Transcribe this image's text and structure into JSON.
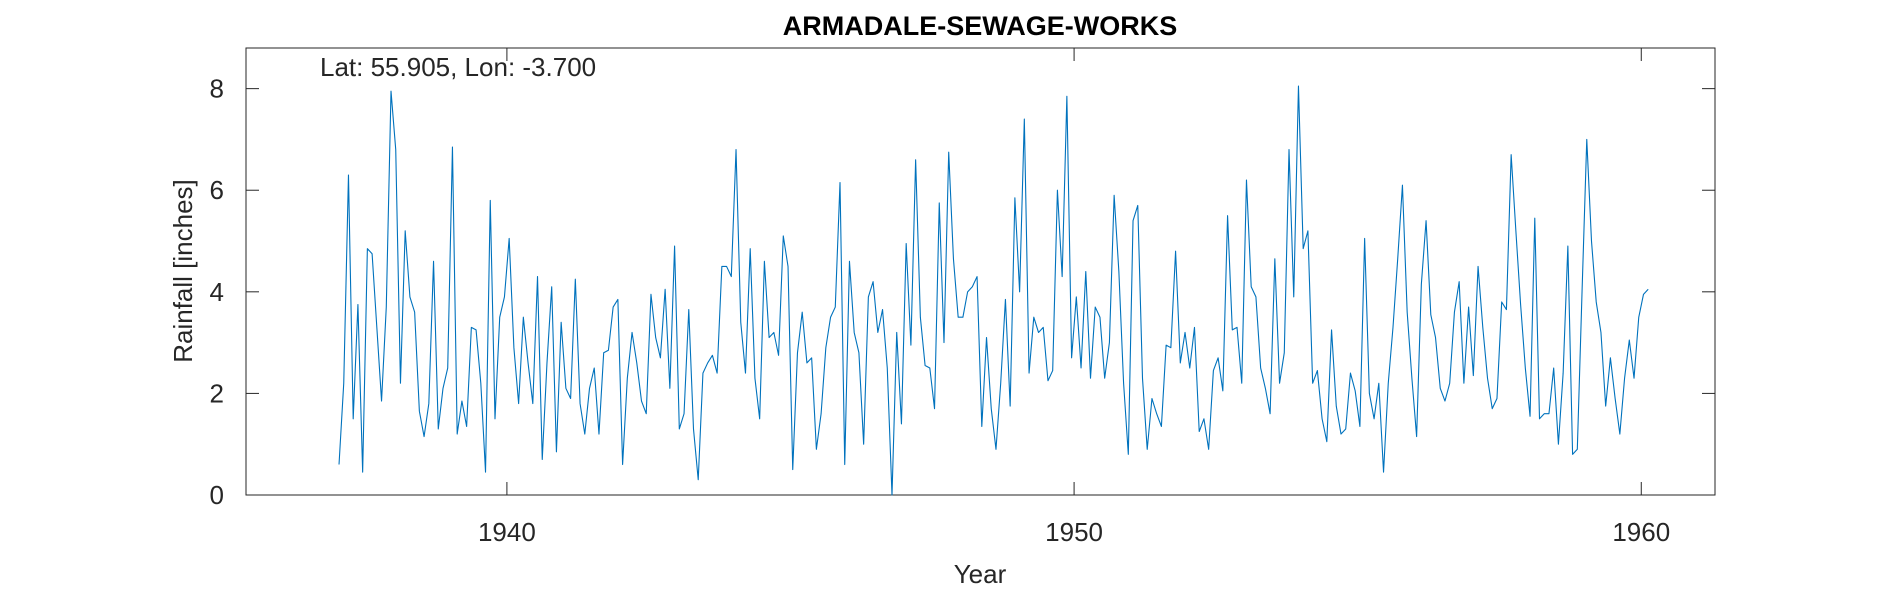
{
  "chart_data": {
    "type": "line",
    "title": "ARMADALE-SEWAGE-WORKS",
    "annotation": "Lat: 55.905, Lon: -3.700",
    "xlabel": "Year",
    "ylabel": "Rainfall [inches]",
    "xlim": [
      1935.4,
      1961.3
    ],
    "ylim": [
      0,
      8.8
    ],
    "xticks": [
      1940,
      1950,
      1960
    ],
    "yticks": [
      0,
      2,
      4,
      6,
      8
    ],
    "grid": false,
    "box": true,
    "line_color": "#0072BD",
    "series": [
      {
        "x_start": 1937.04,
        "x_step": 0.08333,
        "values": [
          0.6,
          2.2,
          6.3,
          1.5,
          3.75,
          0.45,
          4.85,
          4.75,
          3.3,
          1.85,
          3.7,
          7.95,
          6.8,
          2.2,
          5.2,
          3.9,
          3.6,
          1.65,
          1.15,
          1.8,
          4.6,
          1.3,
          2.1,
          2.5,
          6.85,
          1.2,
          1.85,
          1.35,
          3.3,
          3.25,
          2.2,
          0.45,
          5.8,
          1.5,
          3.5,
          3.9,
          5.05,
          2.9,
          1.8,
          3.5,
          2.6,
          1.8,
          4.3,
          0.7,
          2.6,
          4.1,
          0.85,
          3.4,
          2.1,
          1.9,
          4.25,
          1.8,
          1.2,
          2.1,
          2.5,
          1.2,
          2.8,
          2.85,
          3.7,
          3.85,
          0.6,
          2.3,
          3.2,
          2.6,
          1.85,
          1.6,
          3.95,
          3.1,
          2.7,
          4.05,
          2.1,
          4.9,
          1.3,
          1.6,
          3.65,
          1.3,
          0.3,
          2.4,
          2.6,
          2.75,
          2.4,
          4.5,
          4.5,
          4.3,
          6.8,
          3.4,
          2.4,
          4.85,
          2.3,
          1.5,
          4.6,
          3.1,
          3.2,
          2.75,
          5.1,
          4.5,
          0.5,
          2.8,
          3.6,
          2.6,
          2.7,
          0.9,
          1.6,
          2.9,
          3.5,
          3.7,
          6.15,
          0.6,
          4.6,
          3.2,
          2.8,
          1.0,
          3.9,
          4.2,
          3.2,
          3.65,
          2.5,
          0.0,
          3.2,
          1.4,
          4.95,
          2.95,
          6.6,
          3.5,
          2.55,
          2.5,
          1.7,
          5.75,
          3.0,
          6.75,
          4.65,
          3.5,
          3.5,
          4.0,
          4.1,
          4.3,
          1.35,
          3.1,
          1.7,
          0.9,
          2.2,
          3.85,
          1.75,
          5.85,
          4.0,
          7.4,
          2.4,
          3.5,
          3.2,
          3.3,
          2.25,
          2.45,
          6.0,
          4.3,
          7.85,
          2.7,
          3.9,
          2.5,
          4.4,
          2.3,
          3.7,
          3.5,
          2.3,
          3.0,
          5.9,
          4.4,
          2.2,
          0.8,
          5.4,
          5.7,
          2.3,
          0.9,
          1.9,
          1.6,
          1.35,
          2.95,
          2.9,
          4.8,
          2.6,
          3.2,
          2.5,
          3.3,
          1.25,
          1.5,
          0.9,
          2.45,
          2.7,
          2.05,
          5.5,
          3.25,
          3.3,
          2.2,
          6.2,
          4.1,
          3.9,
          2.5,
          2.1,
          1.6,
          4.65,
          2.2,
          2.8,
          6.8,
          3.9,
          8.05,
          4.85,
          5.2,
          2.2,
          2.45,
          1.5,
          1.05,
          3.25,
          1.75,
          1.2,
          1.3,
          2.4,
          2.05,
          1.35,
          5.05,
          2.0,
          1.5,
          2.2,
          0.45,
          2.2,
          3.3,
          4.65,
          6.1,
          3.6,
          2.3,
          1.15,
          4.15,
          5.4,
          3.55,
          3.1,
          2.1,
          1.85,
          2.2,
          3.6,
          4.2,
          2.2,
          3.7,
          2.35,
          4.5,
          3.3,
          2.3,
          1.7,
          1.9,
          3.8,
          3.65,
          6.7,
          5.2,
          3.75,
          2.5,
          1.55,
          5.45,
          1.5,
          1.6,
          1.6,
          2.5,
          1.0,
          2.4,
          4.9,
          0.8,
          0.9,
          4.0,
          7.0,
          5.0,
          3.8,
          3.2,
          1.75,
          2.7,
          1.9,
          1.2,
          2.3,
          3.05,
          2.3,
          3.5,
          3.95,
          4.05
        ]
      }
    ]
  }
}
